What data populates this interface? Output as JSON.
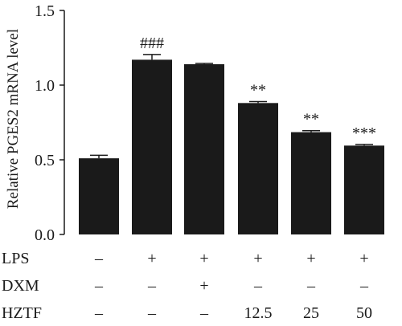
{
  "chart_data": {
    "type": "bar",
    "ylabel": "Relative PGES2 mRNA level",
    "ylim": [
      0,
      1.5
    ],
    "yticks": [
      "0.0",
      "0.5",
      "1.0",
      "1.5"
    ],
    "ytick_values": [
      0,
      0.5,
      1.0,
      1.5
    ],
    "bar_color": "#1a1a1a",
    "values": [
      0.51,
      1.17,
      1.14,
      0.88,
      0.685,
      0.595
    ],
    "errors": [
      0.02,
      0.035,
      0.005,
      0.01,
      0.01,
      0.008
    ],
    "significance": [
      "",
      "###",
      "",
      "**",
      "**",
      "***"
    ],
    "conditions": [
      {
        "name": "LPS",
        "values": [
          "–",
          "+",
          "+",
          "+",
          "+",
          "+"
        ]
      },
      {
        "name": "DXM",
        "values": [
          "–",
          "–",
          "+",
          "–",
          "–",
          "–"
        ]
      },
      {
        "name": "HZTF",
        "values": [
          "–",
          "–",
          "–",
          "12.5",
          "25",
          "50"
        ]
      }
    ]
  }
}
